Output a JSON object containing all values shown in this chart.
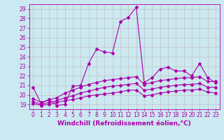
{
  "title": "",
  "xlabel": "Windchill (Refroidissement éolien,°C)",
  "ylabel": "",
  "xlim": [
    -0.5,
    23.5
  ],
  "ylim": [
    18.5,
    29.5
  ],
  "yticks": [
    19,
    20,
    21,
    22,
    23,
    24,
    25,
    26,
    27,
    28,
    29
  ],
  "xticks": [
    0,
    1,
    2,
    3,
    4,
    5,
    6,
    7,
    8,
    9,
    10,
    11,
    12,
    13,
    14,
    15,
    16,
    17,
    18,
    19,
    20,
    21,
    22,
    23
  ],
  "background_color": "#cce8f0",
  "grid_color": "#bbbbbb",
  "line_color": "#aa00aa",
  "series": [
    {
      "x": [
        0,
        1,
        2,
        3,
        4,
        5,
        6,
        7,
        8,
        9,
        10,
        11,
        12,
        13,
        14,
        15,
        16,
        17,
        18,
        19,
        20,
        21,
        22,
        23
      ],
      "y": [
        20.8,
        19.1,
        19.5,
        18.9,
        19.0,
        20.9,
        21.0,
        23.3,
        24.8,
        24.5,
        24.4,
        27.7,
        28.1,
        29.2,
        21.3,
        21.8,
        22.7,
        22.9,
        22.5,
        22.5,
        22.0,
        23.3,
        21.8,
        21.3
      ]
    },
    {
      "x": [
        0,
        1,
        2,
        3,
        4,
        5,
        6,
        7,
        8,
        9,
        10,
        11,
        12,
        13,
        14,
        15,
        16,
        17,
        18,
        19,
        20,
        21,
        22,
        23
      ],
      "y": [
        19.6,
        19.2,
        19.5,
        19.7,
        20.2,
        20.5,
        20.8,
        21.1,
        21.3,
        21.5,
        21.6,
        21.7,
        21.8,
        21.9,
        21.1,
        21.3,
        21.5,
        21.6,
        21.7,
        21.8,
        21.8,
        21.9,
        21.4,
        21.4
      ]
    },
    {
      "x": [
        0,
        1,
        2,
        3,
        4,
        5,
        6,
        7,
        8,
        9,
        10,
        11,
        12,
        13,
        14,
        15,
        16,
        17,
        18,
        19,
        20,
        21,
        22,
        23
      ],
      "y": [
        19.3,
        19.0,
        19.2,
        19.4,
        19.7,
        19.9,
        20.2,
        20.4,
        20.6,
        20.8,
        20.9,
        21.0,
        21.1,
        21.2,
        20.5,
        20.6,
        20.8,
        20.9,
        21.0,
        21.1,
        21.1,
        21.2,
        20.8,
        20.8
      ]
    },
    {
      "x": [
        0,
        1,
        2,
        3,
        4,
        5,
        6,
        7,
        8,
        9,
        10,
        11,
        12,
        13,
        14,
        15,
        16,
        17,
        18,
        19,
        20,
        21,
        22,
        23
      ],
      "y": [
        19.1,
        18.9,
        19.0,
        19.2,
        19.4,
        19.5,
        19.7,
        19.9,
        20.0,
        20.1,
        20.2,
        20.3,
        20.5,
        20.5,
        19.9,
        20.0,
        20.2,
        20.3,
        20.4,
        20.5,
        20.5,
        20.6,
        20.3,
        20.2
      ]
    }
  ],
  "font_size": 6.5,
  "label_font_size": 6.5,
  "tick_font_size": 5.5
}
